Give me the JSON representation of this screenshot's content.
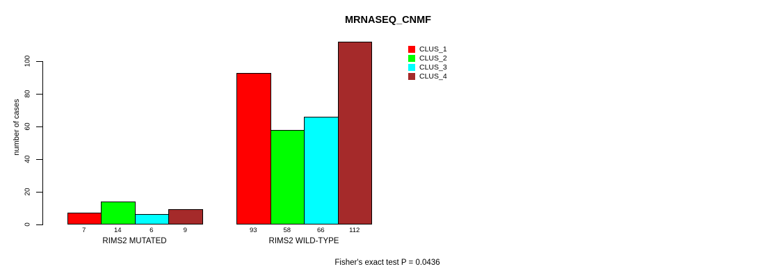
{
  "chart_data": {
    "type": "bar",
    "title": "MRNASEQ_CNMF",
    "ylabel": "number of cases",
    "xlabel": "",
    "ylim": [
      0,
      112
    ],
    "yticks": [
      0,
      20,
      40,
      60,
      80,
      100
    ],
    "grid": false,
    "legend_position": "top-right",
    "categories": [
      "RIMS2 MUTATED",
      "RIMS2 WILD-TYPE"
    ],
    "series": [
      {
        "name": "CLUS_1",
        "color": "#ff0000",
        "values": [
          7,
          93
        ]
      },
      {
        "name": "CLUS_2",
        "color": "#00ff00",
        "values": [
          14,
          58
        ]
      },
      {
        "name": "CLUS_3",
        "color": "#00ffff",
        "values": [
          6,
          66
        ]
      },
      {
        "name": "CLUS_4",
        "color": "#a52a2a",
        "values": [
          9,
          112
        ]
      }
    ],
    "bar_value_labels": [
      [
        "7",
        "14",
        "6",
        "9"
      ],
      [
        "93",
        "58",
        "66",
        "112"
      ]
    ],
    "footnote": "Fisher's exact test P = 0.0436"
  }
}
